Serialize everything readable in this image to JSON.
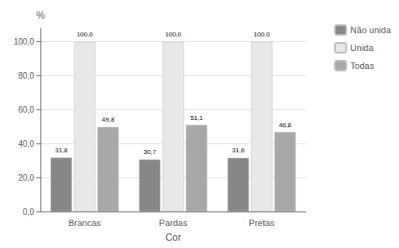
{
  "chart_data": {
    "type": "bar",
    "categories": [
      "Brancas",
      "Pardas",
      "Pretas"
    ],
    "series": [
      {
        "name": "Não unida",
        "color": "#878787",
        "values": [
          31.8,
          30.7,
          31.6
        ],
        "value_labels": [
          "31,8",
          "30,7",
          "31,6"
        ]
      },
      {
        "name": "Unida",
        "color": "#e8e8e8",
        "values": [
          100.0,
          100.0,
          100.0
        ],
        "value_labels": [
          "100,0",
          "100,0",
          "100,0"
        ]
      },
      {
        "name": "Todas",
        "color": "#a8a8a8",
        "values": [
          49.8,
          51.1,
          46.8
        ],
        "value_labels": [
          "49,8",
          "51,1",
          "46,8"
        ]
      }
    ],
    "xlabel": "Cor",
    "ylabel": "%",
    "ylim": [
      0,
      108
    ],
    "yticks": [
      {
        "value": 0,
        "label": "0,0"
      },
      {
        "value": 20,
        "label": "20,0"
      },
      {
        "value": 40,
        "label": "40,0"
      },
      {
        "value": 60,
        "label": "60,0"
      },
      {
        "value": 80,
        "label": "80,0"
      },
      {
        "value": 100,
        "label": "100,0"
      }
    ],
    "grid": true,
    "legend": "upper right",
    "data_labels": true
  }
}
